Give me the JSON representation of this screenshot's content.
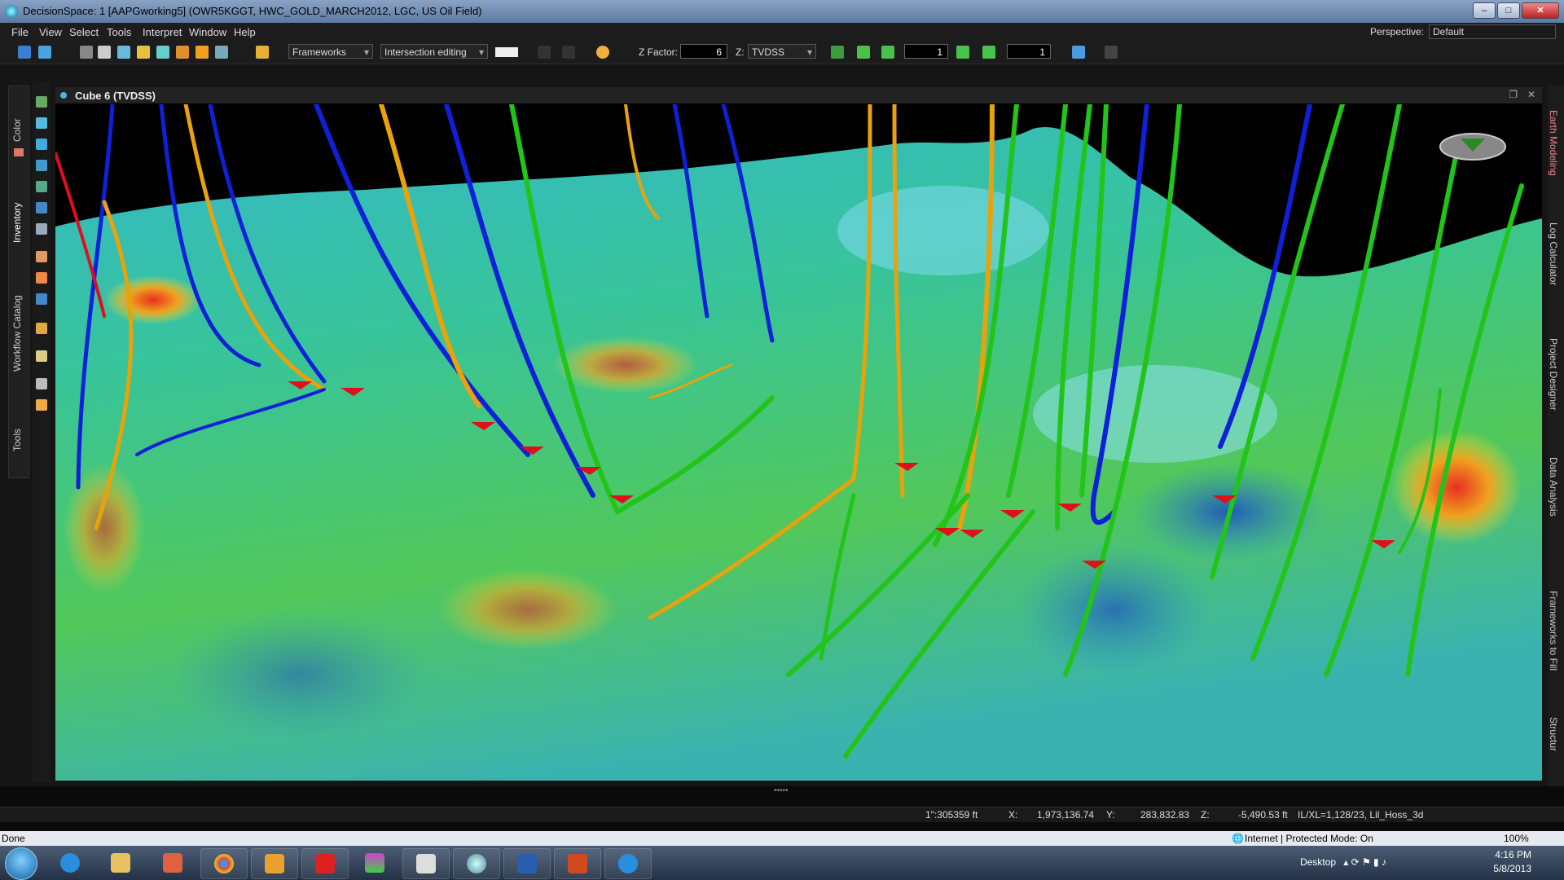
{
  "window": {
    "title": "DecisionSpace: 1 [AAPGworking5] (OWR5KGGT, HWC_GOLD_MARCH2012, LGC, US Oil Field)",
    "min": "–",
    "max": "□",
    "close": "✕"
  },
  "menu": {
    "items": [
      "File",
      "View",
      "Select",
      "Tools",
      "Interpret",
      "Window",
      "Help"
    ],
    "perspective_label": "Perspective:",
    "perspective_value": "Default"
  },
  "toolbar": {
    "frameworks": "Frameworks",
    "intersection": "Intersection editing",
    "zfactor_label": "Z Factor:",
    "zfactor_value": "6",
    "z_label": "Z:",
    "z_value": "TVDSS",
    "frame_a": "1",
    "frame_b": "1"
  },
  "left_tabs": [
    "Color",
    "Inventory",
    "Workflow Catalog",
    "Tools"
  ],
  "right_tabs": [
    "Earth Modeling",
    "Log Calculator",
    "Project Designer",
    "Data Analysis",
    "Frameworks to Fill",
    "Structur"
  ],
  "panel": {
    "title": "Cube 6 (TVDSS)"
  },
  "status": {
    "scale": "1\":305359 ft",
    "x_label": "X:",
    "x_value": "1,973,136.74",
    "y_label": "Y:",
    "y_value": "283,832.83",
    "z_label": "Z:",
    "z_value": "-5,490.53 ft",
    "ilxl": "IL/XL=1,128/23, Lil_Hoss_3d"
  },
  "ie": {
    "done": "Done",
    "zone": "Internet | Protected Mode: On",
    "zoom": "100%"
  },
  "taskbar": {
    "desktop": "Desktop",
    "time": "4:16 PM",
    "date": "5/8/2013"
  },
  "colors": {
    "well_orange": "#e8a20c",
    "well_blue": "#1020d8",
    "well_green": "#22c41a",
    "well_red": "#e0101a"
  }
}
